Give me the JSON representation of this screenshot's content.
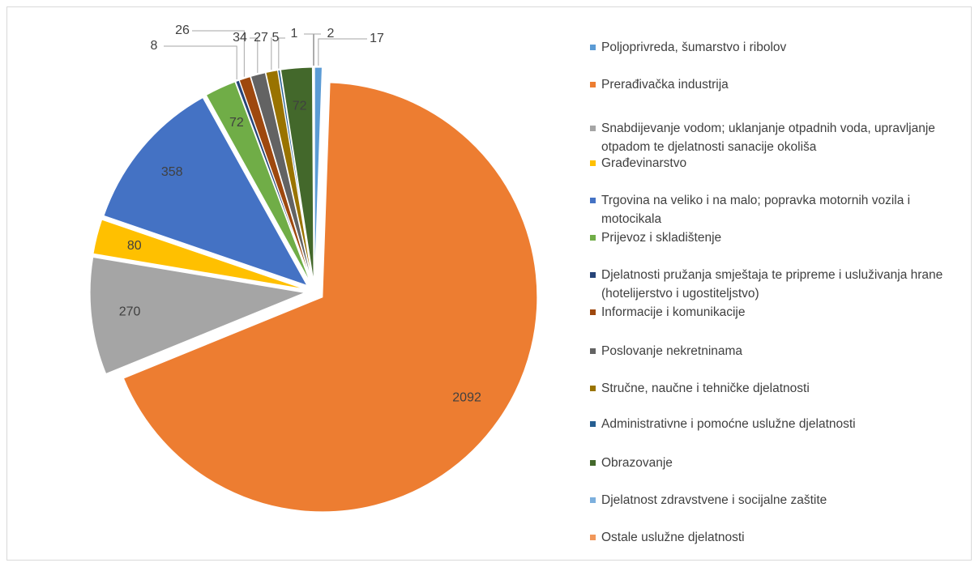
{
  "chart_data": {
    "type": "pie",
    "categories": [
      "Poljoprivreda, šumarstvo i ribolov",
      "Prerađivačka industrija",
      "Snabdijevanje vodom; uklanjanje otpadnih voda, upravljanje otpadom te djelatnosti sanacije okoliša",
      "Građevinarstvo",
      "Trgovina na veliko i na malo; popravka motornih vozila i motocikala",
      "Prijevoz i skladištenje",
      "Djelatnosti pružanja smještaja te pripreme i usluživanja hrane (hotelijerstvo i ugostiteljstvo)",
      "Informacije i komunikacije",
      "Poslovanje nekretninama",
      "Stručne, naučne i tehničke djelatnosti",
      "Administrativne i pomoćne uslužne djelatnosti",
      "Obrazovanje",
      "Djelatnost zdravstvene i socijalne zaštite",
      "Ostale uslužne djelatnosti"
    ],
    "values": [
      17,
      2092,
      270,
      80,
      358,
      72,
      8,
      26,
      34,
      27,
      5,
      72,
      1,
      2
    ],
    "colors": [
      "#5b9bd5",
      "#ed7d31",
      "#a5a5a5",
      "#ffc000",
      "#4472c4",
      "#70ad47",
      "#264478",
      "#9e480e",
      "#636363",
      "#997300",
      "#255e91",
      "#43682b",
      "#7cafdd",
      "#f1975a"
    ],
    "legend": "right"
  }
}
